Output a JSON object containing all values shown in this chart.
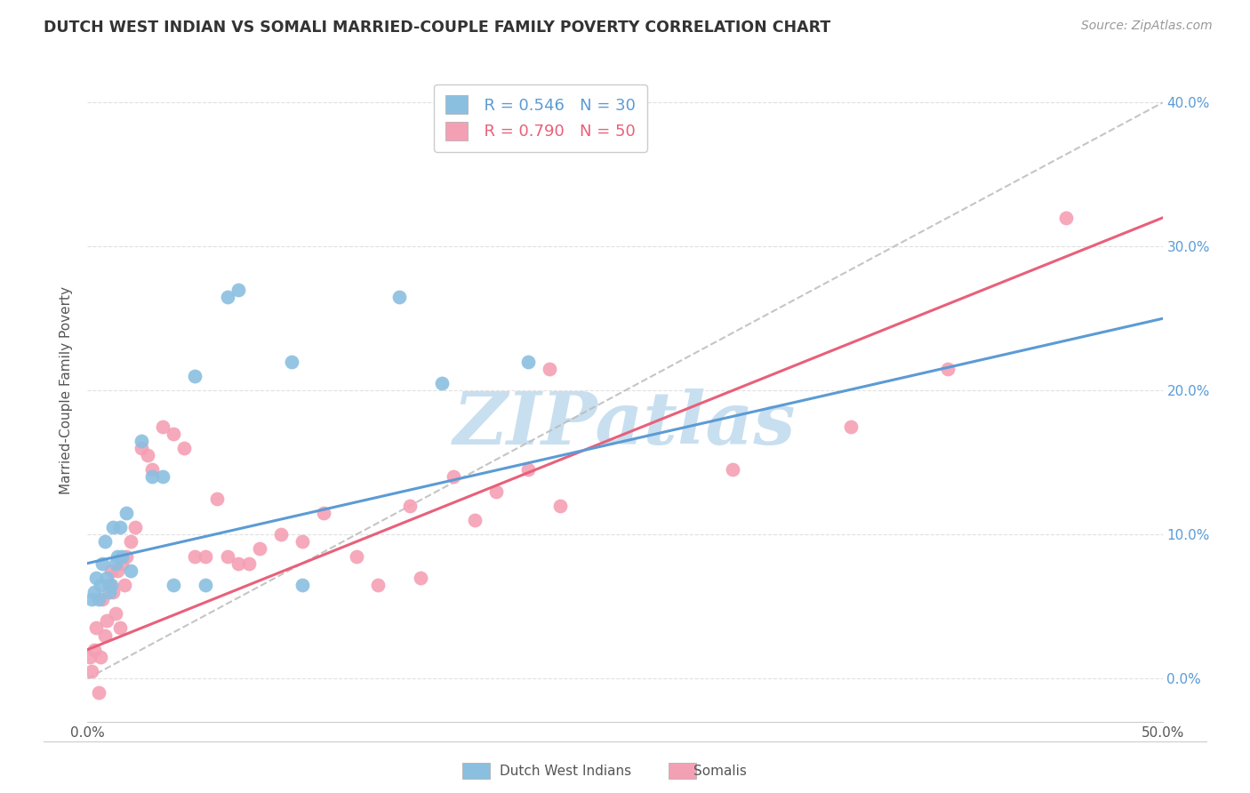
{
  "title": "DUTCH WEST INDIAN VS SOMALI MARRIED-COUPLE FAMILY POVERTY CORRELATION CHART",
  "source": "Source: ZipAtlas.com",
  "ylabel": "Married-Couple Family Poverty",
  "ytick_vals": [
    0,
    10,
    20,
    30,
    40
  ],
  "xlim": [
    0,
    50
  ],
  "ylim": [
    -3,
    43
  ],
  "legend_blue_r": "R = 0.546",
  "legend_blue_n": "N = 30",
  "legend_pink_r": "R = 0.790",
  "legend_pink_n": "N = 50",
  "blue_color": "#8BBFE0",
  "pink_color": "#F4A0B4",
  "blue_line_color": "#5B9BD5",
  "pink_line_color": "#E8607A",
  "dashed_line_color": "#BBBBBB",
  "watermark_text": "ZIPatlas",
  "watermark_color": "#C8DFF0",
  "blue_line_x0": 0,
  "blue_line_y0": 8.0,
  "blue_line_x1": 50,
  "blue_line_y1": 25.0,
  "pink_line_x0": 0,
  "pink_line_y0": 2.0,
  "pink_line_x1": 50,
  "pink_line_y1": 32.0,
  "dash_line_x0": 0,
  "dash_line_y0": 0,
  "dash_line_x1": 50,
  "dash_line_y1": 40.0,
  "blue_points_x": [
    0.2,
    0.3,
    0.4,
    0.5,
    0.6,
    0.7,
    0.8,
    0.9,
    1.0,
    1.1,
    1.2,
    1.3,
    1.4,
    1.5,
    1.6,
    1.8,
    2.0,
    2.5,
    3.0,
    3.5,
    4.0,
    5.0,
    5.5,
    6.5,
    7.0,
    9.5,
    10.0,
    14.5,
    16.5,
    20.5
  ],
  "blue_points_y": [
    5.5,
    6.0,
    7.0,
    5.5,
    6.5,
    8.0,
    9.5,
    7.0,
    6.0,
    6.5,
    10.5,
    8.0,
    8.5,
    10.5,
    8.5,
    11.5,
    7.5,
    16.5,
    14.0,
    14.0,
    6.5,
    21.0,
    6.5,
    26.5,
    27.0,
    22.0,
    6.5,
    26.5,
    20.5,
    22.0
  ],
  "pink_points_x": [
    0.1,
    0.2,
    0.3,
    0.4,
    0.5,
    0.6,
    0.7,
    0.8,
    0.9,
    1.0,
    1.1,
    1.2,
    1.3,
    1.4,
    1.5,
    1.6,
    1.7,
    1.8,
    2.0,
    2.2,
    2.5,
    2.8,
    3.0,
    3.5,
    4.0,
    4.5,
    5.0,
    5.5,
    6.0,
    6.5,
    7.0,
    7.5,
    8.0,
    9.0,
    10.0,
    11.0,
    12.5,
    13.5,
    15.0,
    15.5,
    17.0,
    18.0,
    19.0,
    20.5,
    21.5,
    22.0,
    30.0,
    35.5,
    40.0,
    45.5
  ],
  "pink_points_y": [
    1.5,
    0.5,
    2.0,
    3.5,
    -1.0,
    1.5,
    5.5,
    3.0,
    4.0,
    6.5,
    7.5,
    6.0,
    4.5,
    7.5,
    3.5,
    8.0,
    6.5,
    8.5,
    9.5,
    10.5,
    16.0,
    15.5,
    14.5,
    17.5,
    17.0,
    16.0,
    8.5,
    8.5,
    12.5,
    8.5,
    8.0,
    8.0,
    9.0,
    10.0,
    9.5,
    11.5,
    8.5,
    6.5,
    12.0,
    7.0,
    14.0,
    11.0,
    13.0,
    14.5,
    21.5,
    12.0,
    14.5,
    17.5,
    21.5,
    32.0
  ],
  "grid_color": "#E0E0E0",
  "background_color": "#FFFFFF",
  "legend_label_blue": "Dutch West Indians",
  "legend_label_pink": "Somalis"
}
